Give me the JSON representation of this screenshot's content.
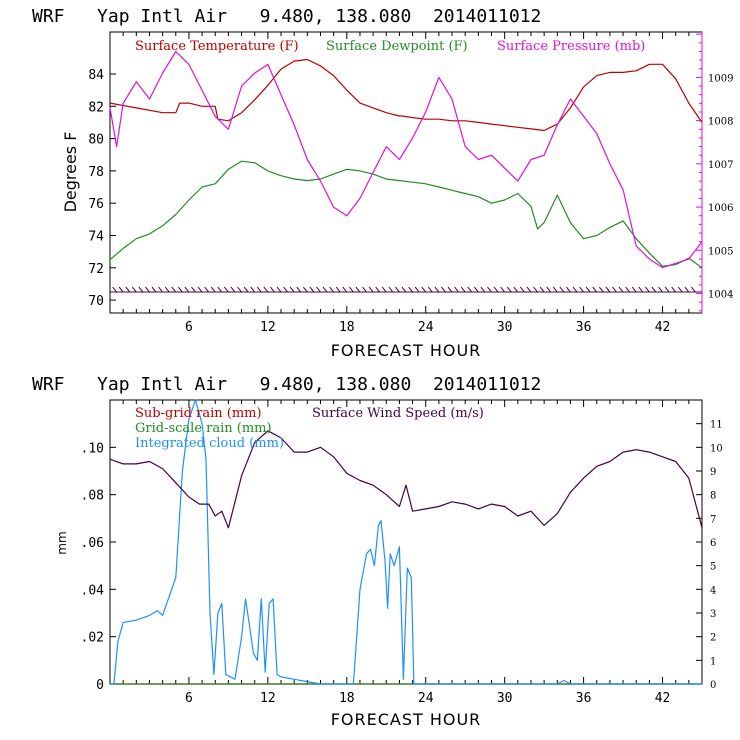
{
  "chart_data": [
    {
      "type": "line",
      "title": "WRF   Yap Intl Air   9.480, 138.080  2014011012",
      "xlabel": "FORECAST HOUR",
      "ylabel": "Degrees F",
      "xlim": [
        0,
        45
      ],
      "ylim": [
        69.2,
        86.6
      ],
      "y2lim": [
        1003.55,
        1010.05
      ],
      "x_ticks": [
        6,
        12,
        18,
        24,
        30,
        36,
        42
      ],
      "y_ticks": [
        70,
        72,
        74,
        76,
        78,
        80,
        82,
        84
      ],
      "y2_ticks": [
        1004,
        1005,
        1006,
        1007,
        1008,
        1009
      ],
      "colors": {
        "temperature": "#bb0000",
        "dewpoint": "#228b22",
        "pressure": "#dd11dd",
        "wind": "#440044"
      },
      "series": [
        {
          "name": "Surface Temperature (F)",
          "axis": "left",
          "x": [
            0,
            2,
            4,
            5,
            5.3,
            6,
            7,
            8,
            8.2,
            9,
            10,
            11,
            12,
            13,
            14,
            15,
            16,
            17,
            18,
            19,
            20,
            21,
            22,
            22.2,
            23,
            24,
            25,
            26,
            27,
            28,
            29,
            30,
            31,
            32,
            33,
            34,
            35,
            36,
            37,
            38,
            39,
            40,
            41,
            42,
            43,
            44,
            45
          ],
          "y": [
            82.2,
            81.9,
            81.6,
            81.6,
            82.2,
            82.2,
            82.0,
            82.0,
            81.2,
            81.1,
            81.6,
            82.4,
            83.3,
            84.3,
            84.8,
            84.9,
            84.5,
            83.9,
            83.0,
            82.2,
            81.9,
            81.6,
            81.4,
            81.4,
            81.3,
            81.2,
            81.2,
            81.1,
            81.1,
            81.0,
            80.9,
            80.8,
            80.7,
            80.6,
            80.5,
            80.9,
            81.9,
            83.2,
            83.9,
            84.1,
            84.1,
            84.2,
            84.6,
            84.6,
            83.7,
            82.2,
            81.0
          ]
        },
        {
          "name": "Surface Dewpoint (F)",
          "axis": "left",
          "x": [
            0,
            1,
            2,
            3,
            4,
            5,
            6,
            7,
            8,
            9,
            10,
            11,
            12,
            13,
            14,
            15,
            16,
            17,
            18,
            19,
            20,
            21,
            22,
            23,
            24,
            25,
            26,
            27,
            28,
            29,
            30,
            31,
            32,
            32.5,
            33,
            34,
            35,
            36,
            37,
            38,
            39,
            40,
            41,
            42,
            43,
            44,
            45
          ],
          "y": [
            72.5,
            73.2,
            73.8,
            74.1,
            74.6,
            75.3,
            76.2,
            77.0,
            77.2,
            78.1,
            78.6,
            78.5,
            78.0,
            77.7,
            77.5,
            77.4,
            77.5,
            77.8,
            78.1,
            78.0,
            77.8,
            77.5,
            77.4,
            77.3,
            77.2,
            77.0,
            76.8,
            76.6,
            76.4,
            76.0,
            76.2,
            76.6,
            75.8,
            74.4,
            74.8,
            76.5,
            74.8,
            73.8,
            74.0,
            74.5,
            74.9,
            73.8,
            72.9,
            72.1,
            72.2,
            72.6,
            72.0
          ]
        },
        {
          "name": "Surface Pressure (mb)",
          "axis": "right",
          "x": [
            0,
            0.5,
            1,
            2,
            3,
            4,
            5,
            6,
            7,
            8,
            9,
            10,
            11,
            12,
            13,
            14,
            15,
            16,
            17,
            18,
            19,
            20,
            21,
            22,
            23,
            24,
            25,
            26,
            27,
            28,
            29,
            30,
            31,
            32,
            33,
            34,
            35,
            36,
            37,
            38,
            39,
            40,
            41,
            42,
            43,
            44,
            45
          ],
          "y": [
            1008.3,
            1007.4,
            1008.4,
            1008.9,
            1008.5,
            1009.1,
            1009.6,
            1009.3,
            1008.7,
            1008.1,
            1007.8,
            1008.8,
            1009.1,
            1009.3,
            1008.6,
            1007.9,
            1007.1,
            1006.6,
            1006.0,
            1005.8,
            1006.2,
            1006.8,
            1007.4,
            1007.1,
            1007.6,
            1008.2,
            1009.0,
            1008.5,
            1007.4,
            1007.1,
            1007.2,
            1006.9,
            1006.6,
            1007.1,
            1007.2,
            1007.9,
            1008.5,
            1008.1,
            1007.7,
            1007.0,
            1006.4,
            1005.1,
            1004.8,
            1004.6,
            1004.7,
            1004.8,
            1005.2
          ]
        },
        {
          "name": "",
          "axis": "left",
          "x": [
            0,
            45
          ],
          "y": [
            70.5,
            70.5
          ]
        }
      ],
      "legend": [
        "Surface Temperature (F)",
        "Surface Dewpoint (F)",
        "Surface Pressure (mb)"
      ],
      "legend_position": "top"
    },
    {
      "type": "line",
      "title": "WRF   Yap Intl Air   9.480, 138.080  2014011012",
      "xlabel": "FORECAST HOUR",
      "ylabel": "mm",
      "xlim": [
        0,
        45
      ],
      "ylim": [
        0,
        0.12
      ],
      "y2lim": [
        0,
        12
      ],
      "x_ticks": [
        0,
        6,
        12,
        18,
        24,
        30,
        36,
        42
      ],
      "y_ticks": [
        0,
        0.02,
        0.04,
        0.06,
        0.08,
        0.1
      ],
      "y_tick_labels": [
        "0",
        ".02",
        ".04",
        ".06",
        ".08",
        ".10"
      ],
      "y2_ticks": [
        0,
        1,
        2,
        3,
        4,
        5,
        6,
        7,
        8,
        9,
        10,
        11
      ],
      "colors": {
        "subgrid": "#bb0000",
        "gridscale": "#228b22",
        "cloud": "#1e90ff",
        "wind": "#440044"
      },
      "series": [
        {
          "name": "Surface Wind Speed (m/s)",
          "axis": "right",
          "x": [
            0,
            1,
            2,
            3,
            4,
            5,
            6,
            6.8,
            7.5,
            8,
            8.5,
            9,
            9.5,
            10,
            11,
            12,
            13,
            14,
            15,
            16,
            17,
            18,
            19,
            20,
            21,
            22,
            22.5,
            23,
            24,
            25,
            26,
            27,
            28,
            29,
            30,
            31,
            32,
            33,
            34,
            35,
            36,
            37,
            38,
            39,
            40,
            41,
            42,
            43,
            44,
            45
          ],
          "y": [
            9.5,
            9.3,
            9.3,
            9.4,
            9.1,
            8.5,
            7.9,
            7.6,
            7.6,
            7.1,
            7.3,
            6.6,
            7.7,
            8.8,
            10.2,
            10.7,
            10.4,
            9.8,
            9.8,
            10.0,
            9.6,
            8.9,
            8.6,
            8.4,
            8.0,
            7.5,
            8.4,
            7.3,
            7.4,
            7.5,
            7.7,
            7.6,
            7.4,
            7.6,
            7.5,
            7.1,
            7.3,
            6.7,
            7.2,
            8.1,
            8.7,
            9.2,
            9.4,
            9.8,
            9.9,
            9.8,
            9.6,
            9.4,
            8.7,
            6.6
          ]
        },
        {
          "name": "Integrated cloud (mm)",
          "axis": "left",
          "x": [
            0,
            0.3,
            0.6,
            1,
            2,
            3,
            3.6,
            4,
            5,
            5.5,
            6,
            6.5,
            7,
            7.3,
            7.6,
            7.9,
            8.2,
            8.5,
            8.8,
            9.5,
            10,
            10.3,
            10.6,
            10.9,
            11.2,
            11.5,
            11.8,
            12.1,
            12.4,
            12.7,
            13,
            14,
            15,
            16,
            17,
            18,
            18.5,
            19,
            19.5,
            19.8,
            20.1,
            20.4,
            20.6,
            20.9,
            21.1,
            21.3,
            21.6,
            21.8,
            22,
            22.3,
            22.6,
            22.9,
            23.1,
            24,
            30,
            34,
            34.5,
            35,
            45
          ],
          "y": [
            0,
            0,
            0.018,
            0.026,
            0.027,
            0.029,
            0.031,
            0.029,
            0.045,
            0.09,
            0.112,
            0.12,
            0.11,
            0.095,
            0.03,
            0.004,
            0.03,
            0.034,
            0.004,
            0.002,
            0.02,
            0.036,
            0.025,
            0.013,
            0.01,
            0.036,
            0.005,
            0.034,
            0.036,
            0.004,
            0.003,
            0.002,
            0.001,
            0.0,
            0.0,
            0.0,
            0.0,
            0.04,
            0.055,
            0.057,
            0.05,
            0.067,
            0.069,
            0.052,
            0.032,
            0.055,
            0.05,
            0.054,
            0.058,
            0.002,
            0.049,
            0.045,
            0.0,
            0.0,
            0.0,
            0.0,
            0.0015,
            0.0,
            0.0
          ]
        },
        {
          "name": "Sub-grid rain (mm)",
          "axis": "left",
          "x": [
            0,
            45
          ],
          "y": [
            0,
            0
          ]
        },
        {
          "name": "Grid-scale rain (mm)",
          "axis": "left",
          "x": [
            0,
            45
          ],
          "y": [
            0,
            0
          ]
        }
      ],
      "legend": [
        "Sub-grid rain (mm)",
        "Grid-scale rain (mm)",
        "Integrated cloud (mm)",
        "Surface Wind Speed (m/s)"
      ],
      "legend_position": "top-left"
    }
  ]
}
